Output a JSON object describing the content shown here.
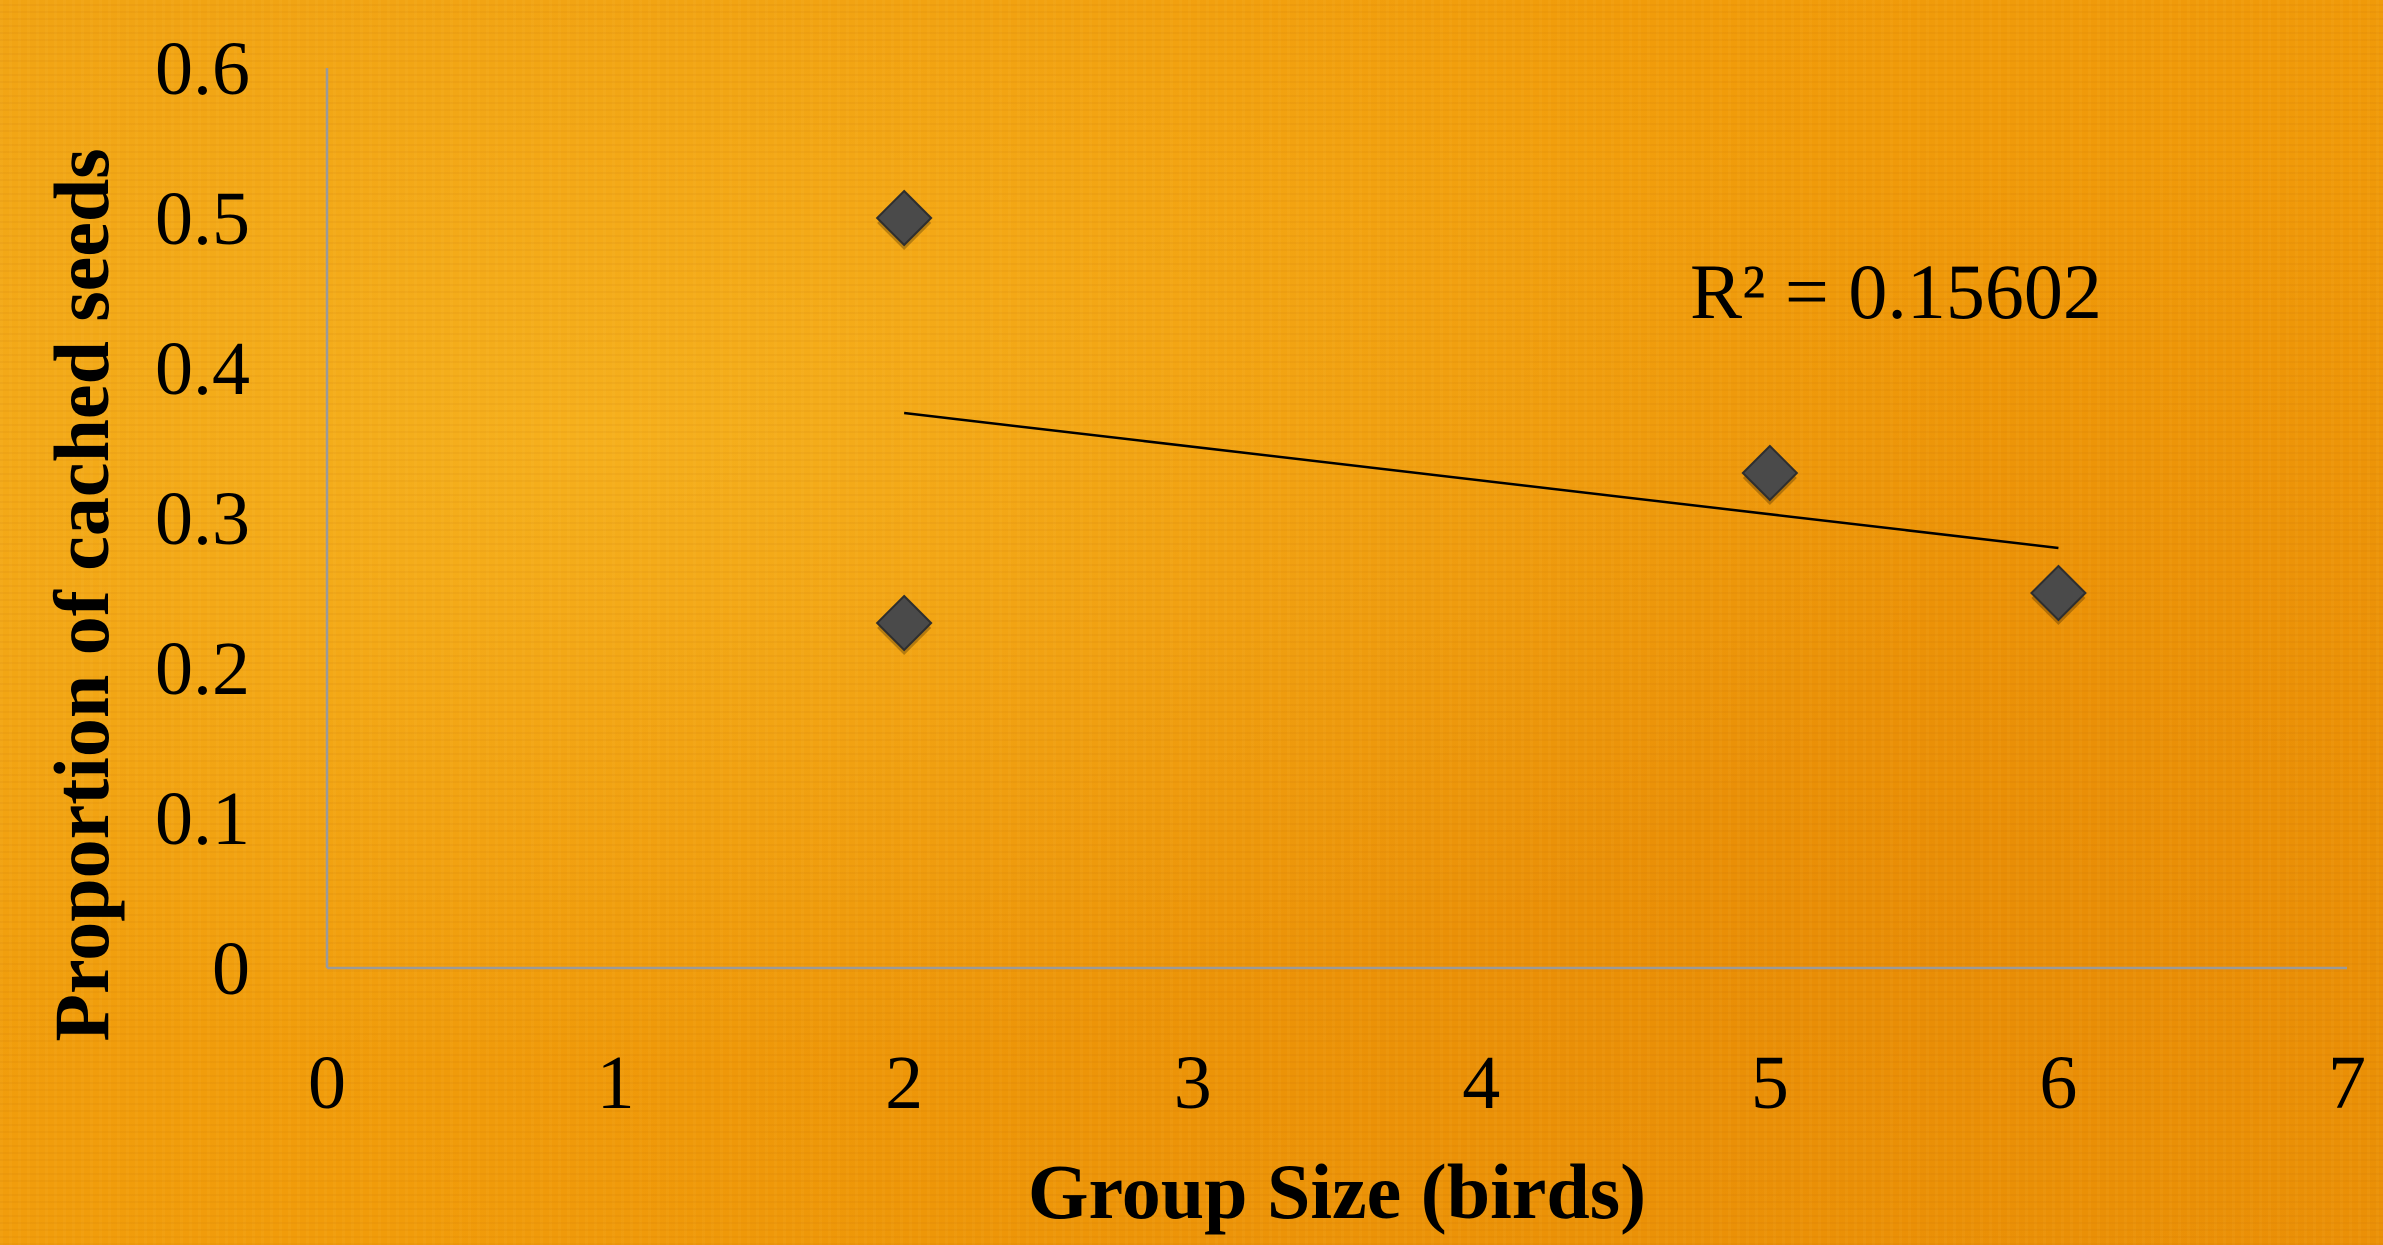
{
  "chart_data": {
    "type": "scatter",
    "title": "",
    "xlabel": "Group Size (birds)",
    "ylabel": "Proportion of cached seeds",
    "xlim": [
      0,
      7
    ],
    "ylim": [
      0,
      0.6
    ],
    "x_ticks": [
      "0",
      "1",
      "2",
      "3",
      "4",
      "5",
      "6",
      "7"
    ],
    "y_ticks": [
      "0",
      "0.1",
      "0.2",
      "0.3",
      "0.4",
      "0.5",
      "0.6"
    ],
    "grid": false,
    "legend": "none",
    "marker": "diamond",
    "series": [
      {
        "points": [
          {
            "x": 2,
            "y": 0.5
          },
          {
            "x": 2,
            "y": 0.23
          },
          {
            "x": 5,
            "y": 0.33
          },
          {
            "x": 6,
            "y": 0.25
          }
        ]
      }
    ],
    "trendline": {
      "type": "linear",
      "x_range": [
        2,
        6
      ],
      "y_start": 0.37,
      "y_end": 0.28
    },
    "annotations": [
      {
        "text": "R² = 0.15602"
      }
    ],
    "colors": {
      "marker": "#4a4a4a",
      "trendline": "#000000",
      "axis": "#9a9a9a",
      "background": "#f09e0c"
    }
  }
}
